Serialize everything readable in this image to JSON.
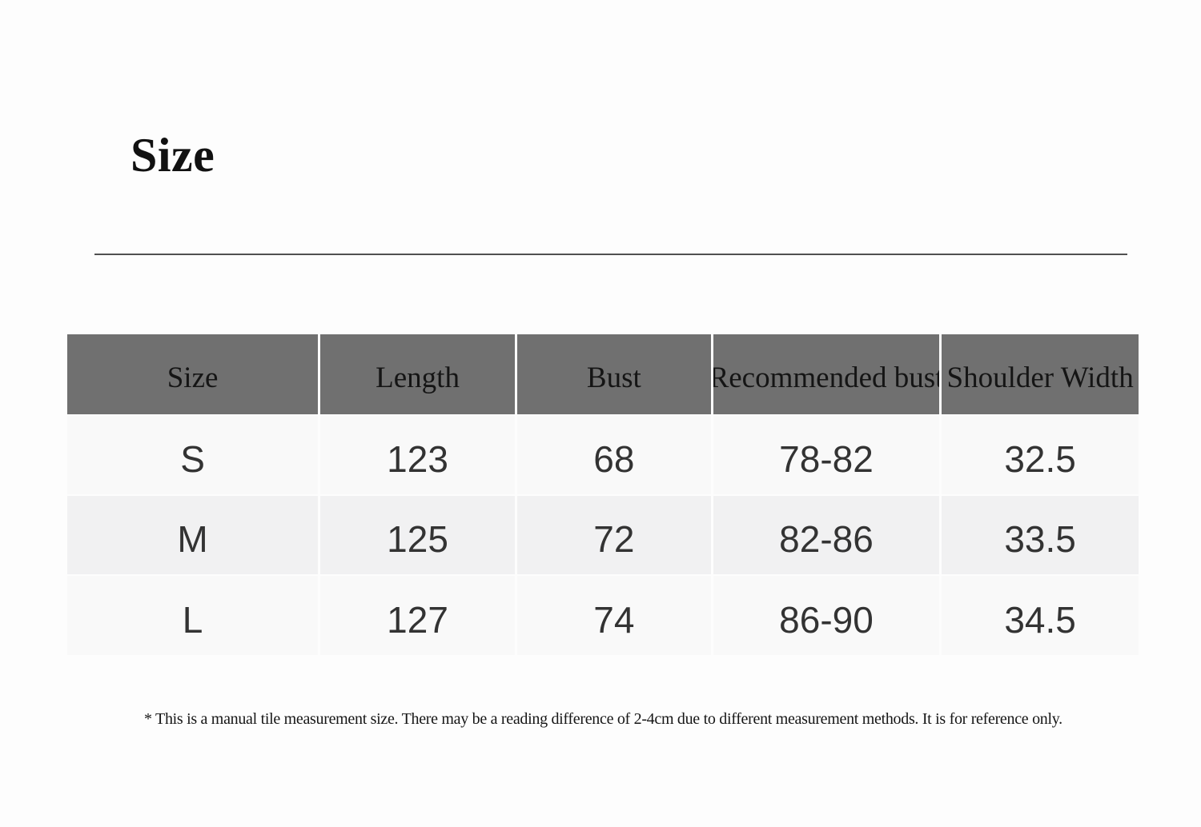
{
  "page": {
    "title": "Size"
  },
  "table": {
    "headers": [
      "Size",
      "Length",
      "Bust",
      "Recommended bust",
      "Shoulder Width"
    ],
    "rows": [
      [
        "S",
        "123",
        "68",
        "78-82",
        "32.5"
      ],
      [
        "M",
        "125",
        "72",
        "82-86",
        "33.5"
      ],
      [
        "L",
        "127",
        "74",
        "86-90",
        "34.5"
      ]
    ]
  },
  "footnote": "* This is a manual tile measurement size. There may be a reading difference of 2-4cm due to different measurement methods. It is for reference only.",
  "colors": {
    "header_bg": "#707070",
    "row_light": "#f9f9f9",
    "row_alt": "#f1f1f2",
    "divider": "#505050",
    "body_text": "#333333",
    "header_text": "#151515"
  }
}
